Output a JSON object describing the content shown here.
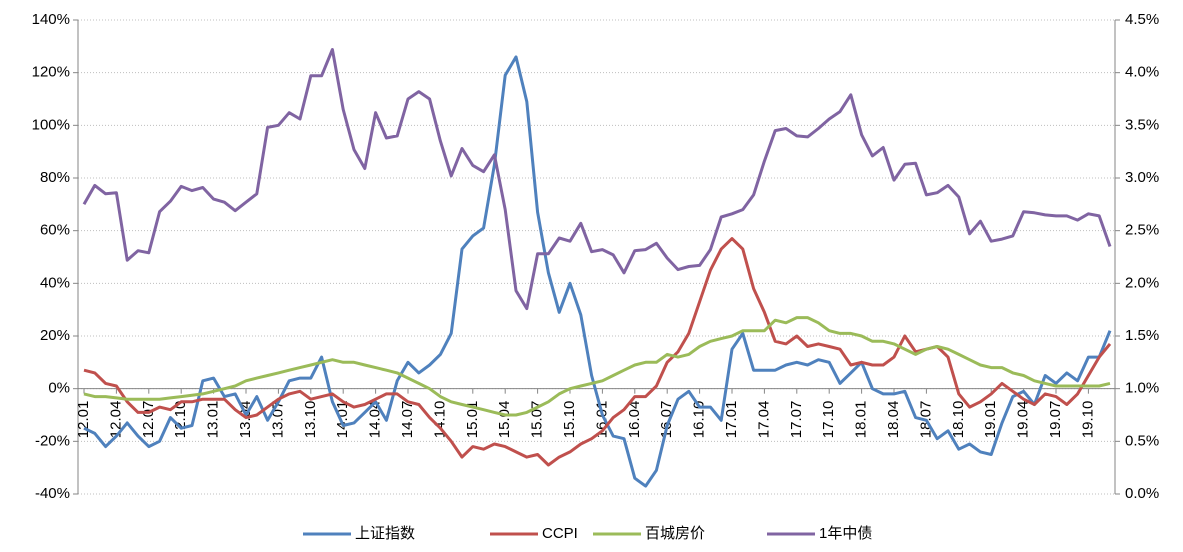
{
  "chart_data": {
    "type": "line",
    "categories": [
      "12.01",
      null,
      null,
      "12.04",
      null,
      null,
      "12.07",
      null,
      null,
      "12.10",
      null,
      null,
      "13.01",
      null,
      null,
      "13.04",
      null,
      null,
      "13.07",
      null,
      null,
      "13.10",
      null,
      null,
      "14.01",
      null,
      null,
      "14.04",
      null,
      null,
      "14.07",
      null,
      null,
      "14.10",
      null,
      null,
      "15.01",
      null,
      null,
      "15.04",
      null,
      null,
      "15.07",
      null,
      null,
      "15.10",
      null,
      null,
      "16.01",
      null,
      null,
      "16.04",
      null,
      null,
      "16.07",
      null,
      null,
      "16.10",
      null,
      null,
      "17.01",
      null,
      null,
      "17.04",
      null,
      null,
      "17.07",
      null,
      null,
      "17.10",
      null,
      null,
      "18.01",
      null,
      null,
      "18.04",
      null,
      null,
      "18.07",
      null,
      null,
      "18.10",
      null,
      null,
      "19.01",
      null,
      null,
      "19.04",
      null,
      null,
      "19.07",
      null,
      null,
      "19.10",
      null,
      null
    ],
    "series": [
      {
        "name": "上证指数",
        "color": "#4f81bd",
        "values": [
          -15,
          -17,
          -22,
          -18,
          -13,
          -18,
          -22,
          -20,
          -11,
          -15,
          -14,
          3,
          4,
          -3,
          -2,
          -10,
          -3,
          -12,
          -5,
          3,
          4,
          4,
          12,
          -5,
          -14,
          -13,
          -9,
          -5,
          -12,
          3,
          10,
          6,
          9,
          13,
          21,
          53,
          58,
          61,
          85,
          119,
          126,
          109,
          67,
          44,
          29,
          40,
          28,
          5,
          -10,
          -18,
          -19,
          -34,
          -37,
          -31,
          -14,
          -4,
          -1,
          -7,
          -7,
          -12,
          15,
          21,
          7,
          7,
          7,
          9,
          10,
          9,
          11,
          10,
          2,
          6,
          10,
          0,
          -2,
          -2,
          -1,
          -11,
          -12,
          -19,
          -16,
          -23,
          -21,
          -24,
          -25,
          -13,
          -3,
          -1,
          -6,
          5,
          2,
          6,
          3,
          12,
          12,
          22
        ]
      },
      {
        "name": "CCPI",
        "color": "#c0504d",
        "values": [
          7,
          6,
          2,
          1,
          -5,
          -9,
          -9,
          -7,
          -8,
          -5,
          -5,
          -4,
          -4,
          -4,
          -8,
          -11,
          -10,
          -7,
          -4,
          -2,
          -1,
          -4,
          -3,
          -2,
          -5,
          -7,
          -6,
          -4,
          -2,
          -2,
          -5,
          -6,
          -11,
          -15,
          -20,
          -26,
          -22,
          -23,
          -21,
          -22,
          -24,
          -26,
          -25,
          -29,
          -26,
          -24,
          -21,
          -19,
          -16,
          -11,
          -8,
          -3,
          -3,
          1,
          10,
          14,
          21,
          33,
          45,
          53,
          57,
          53,
          38,
          29,
          18,
          17,
          20,
          16,
          17,
          16,
          15,
          9,
          10,
          9,
          9,
          12,
          20,
          14,
          15,
          16,
          12,
          -2,
          -7,
          -5,
          -2,
          2,
          -1,
          -4,
          -6,
          -2,
          -3,
          -6,
          -2,
          5,
          12,
          17
        ]
      },
      {
        "name": "百城房价",
        "color": "#9bbb59",
        "values": [
          -2,
          -3,
          -3,
          -3.5,
          -4,
          -4,
          -4,
          -4,
          -3.5,
          -3,
          -2.5,
          -2,
          -1,
          0,
          1,
          3,
          4,
          5,
          6,
          7,
          8,
          9,
          10,
          11,
          10,
          10,
          9,
          8,
          7,
          6,
          4,
          2,
          0,
          -3,
          -5,
          -6,
          -7,
          -8,
          -9,
          -10,
          -10,
          -9,
          -7,
          -5,
          -2,
          0,
          1,
          2,
          3,
          5,
          7,
          9,
          10,
          10,
          13,
          12,
          13,
          16,
          18,
          19,
          20,
          22,
          22,
          22,
          26,
          25,
          27,
          27,
          25,
          22,
          21,
          21,
          20,
          18,
          18,
          17,
          15,
          13,
          15,
          16,
          15,
          13,
          11,
          9,
          8,
          8,
          6,
          5,
          3,
          2,
          1,
          1,
          1,
          1,
          1,
          2
        ]
      },
      {
        "name": "1年中债",
        "color": "#8064a2",
        "axis": "y2",
        "values": [
          2.75,
          2.93,
          2.85,
          2.86,
          2.22,
          2.31,
          2.29,
          2.68,
          2.78,
          2.92,
          2.88,
          2.91,
          2.8,
          2.77,
          2.69,
          2.77,
          2.85,
          3.48,
          3.5,
          3.62,
          3.56,
          3.97,
          3.97,
          4.22,
          3.65,
          3.27,
          3.09,
          3.62,
          3.38,
          3.4,
          3.75,
          3.82,
          3.75,
          3.35,
          3.02,
          3.28,
          3.12,
          3.06,
          3.22,
          2.7,
          1.93,
          1.76,
          2.28,
          2.28,
          2.43,
          2.4,
          2.57,
          2.3,
          2.32,
          2.27,
          2.1,
          2.31,
          2.32,
          2.38,
          2.24,
          2.13,
          2.16,
          2.17,
          2.32,
          2.63,
          2.66,
          2.7,
          2.84,
          3.16,
          3.45,
          3.47,
          3.4,
          3.39,
          3.47,
          3.56,
          3.63,
          3.79,
          3.41,
          3.21,
          3.29,
          2.98,
          3.13,
          3.14,
          2.84,
          2.86,
          2.93,
          2.82,
          2.47,
          2.59,
          2.4,
          2.42,
          2.45,
          2.68,
          2.67,
          2.65,
          2.64,
          2.64,
          2.6,
          2.66,
          2.64,
          2.35
        ]
      }
    ],
    "ylim": [
      -40,
      140
    ],
    "yticks": [
      {
        "value": -40,
        "label": "-40%"
      },
      {
        "value": -20,
        "label": "-20%"
      },
      {
        "value": 0,
        "label": "0%"
      },
      {
        "value": 20,
        "label": "20%"
      },
      {
        "value": 40,
        "label": "40%"
      },
      {
        "value": 60,
        "label": "60%"
      },
      {
        "value": 80,
        "label": "80%"
      },
      {
        "value": 100,
        "label": "100%"
      },
      {
        "value": 120,
        "label": "120%"
      },
      {
        "value": 140,
        "label": "140%"
      }
    ],
    "y2lim": [
      0,
      4.5
    ],
    "y2ticks": [
      {
        "value": 0,
        "label": "0.0%"
      },
      {
        "value": 0.5,
        "label": "0.5%"
      },
      {
        "value": 1,
        "label": "1.0%"
      },
      {
        "value": 1.5,
        "label": "1.5%"
      },
      {
        "value": 2,
        "label": "2.0%"
      },
      {
        "value": 2.5,
        "label": "2.5%"
      },
      {
        "value": 3,
        "label": "3.0%"
      },
      {
        "value": 3.5,
        "label": "3.5%"
      },
      {
        "value": 4,
        "label": "4.0%"
      },
      {
        "value": 4.5,
        "label": "4.5%"
      }
    ],
    "grid": true,
    "legend": "bottom"
  }
}
